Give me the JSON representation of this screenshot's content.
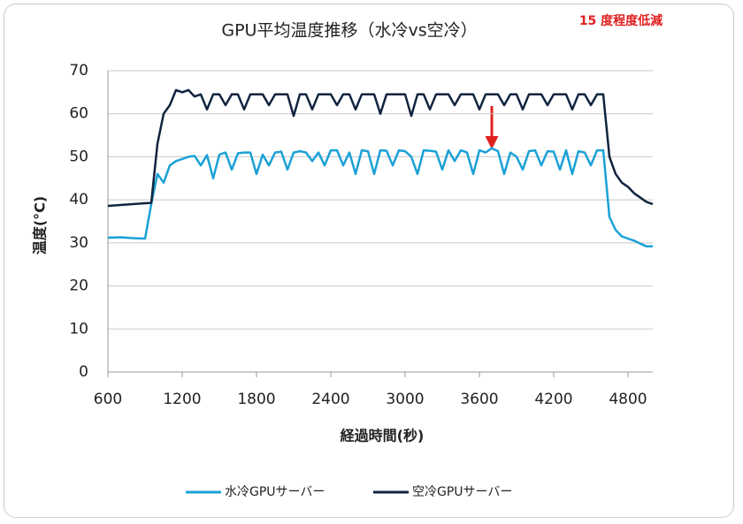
{
  "chart_data": {
    "type": "line",
    "title": "GPU平均温度推移（水冷vs空冷）",
    "annotation": "15 度程度低減",
    "xlabel": "経過時間(秒)",
    "ylabel": "温度(°C)",
    "xlim": [
      600,
      5000
    ],
    "xticks": [
      600,
      1200,
      1800,
      2400,
      3000,
      3600,
      4200,
      4800
    ],
    "ylim": [
      0,
      70
    ],
    "yticks": [
      0,
      10,
      20,
      30,
      40,
      50,
      60,
      70
    ],
    "grid": true,
    "legend": "bottom",
    "x": [
      600,
      700,
      800,
      900,
      950,
      1000,
      1050,
      1100,
      1150,
      1200,
      1250,
      1300,
      1350,
      1400,
      1450,
      1500,
      1550,
      1600,
      1650,
      1700,
      1750,
      1800,
      1850,
      1900,
      1950,
      2000,
      2050,
      2100,
      2150,
      2200,
      2250,
      2300,
      2350,
      2400,
      2450,
      2500,
      2550,
      2600,
      2650,
      2700,
      2750,
      2800,
      2850,
      2900,
      2950,
      3000,
      3050,
      3100,
      3150,
      3200,
      3250,
      3300,
      3350,
      3400,
      3450,
      3500,
      3550,
      3600,
      3650,
      3700,
      3750,
      3800,
      3850,
      3900,
      3950,
      4000,
      4050,
      4100,
      4150,
      4200,
      4250,
      4300,
      4350,
      4400,
      4450,
      4500,
      4550,
      4600,
      4650,
      4700,
      4750,
      4800,
      4850,
      4900,
      4950,
      5000
    ],
    "series": [
      {
        "name": "水冷GPUサーバー",
        "color": "#1ba1d6",
        "values": [
          31.2,
          31.3,
          31.1,
          31.0,
          39,
          46,
          44,
          48,
          49,
          49.5,
          50,
          50.2,
          48,
          50.4,
          45,
          50.5,
          51,
          47,
          50.8,
          51,
          51,
          46,
          50.5,
          48,
          51,
          51.2,
          47,
          51,
          51.3,
          51,
          49,
          51,
          48,
          51.5,
          51.5,
          48,
          51,
          46,
          51.5,
          51.3,
          46,
          51.5,
          51.4,
          48,
          51.5,
          51.3,
          50,
          46,
          51.5,
          51.4,
          51.2,
          47,
          51.5,
          49,
          51.5,
          51,
          46,
          51.5,
          51,
          52,
          51.3,
          46,
          51,
          50,
          47,
          51.3,
          51.5,
          48,
          51.3,
          51.2,
          47,
          51.5,
          46,
          51.3,
          51,
          48,
          51.5,
          51.5,
          36,
          33,
          31.5,
          31,
          30.5,
          29.8,
          29.2,
          29.2
        ]
      },
      {
        "name": "空冷GPUサーバー",
        "color": "#10233f",
        "values": [
          38.6,
          38.8,
          39,
          39.2,
          39.3,
          53,
          60,
          62,
          65.5,
          65,
          65.5,
          64,
          64.5,
          61,
          64.5,
          64.5,
          62,
          64.5,
          64.5,
          61,
          64.5,
          64.5,
          64.5,
          62,
          64.5,
          64.5,
          64.5,
          59.5,
          64.5,
          64.5,
          61,
          64.5,
          64.5,
          64.5,
          62,
          64.5,
          64.5,
          61,
          64.5,
          64.5,
          64.5,
          60,
          64.5,
          64.5,
          64.5,
          64.5,
          59.5,
          64.5,
          64.5,
          61,
          64.5,
          64.5,
          64.5,
          62,
          64.5,
          64.5,
          64.5,
          61,
          64.5,
          64.5,
          64.5,
          62,
          64.5,
          64.5,
          61,
          64.5,
          64.5,
          64.5,
          62,
          64.5,
          64.5,
          64.5,
          61,
          64.5,
          64.5,
          62,
          64.5,
          64.5,
          50,
          46,
          44,
          43,
          41.5,
          40.5,
          39.5,
          39
        ]
      }
    ]
  }
}
